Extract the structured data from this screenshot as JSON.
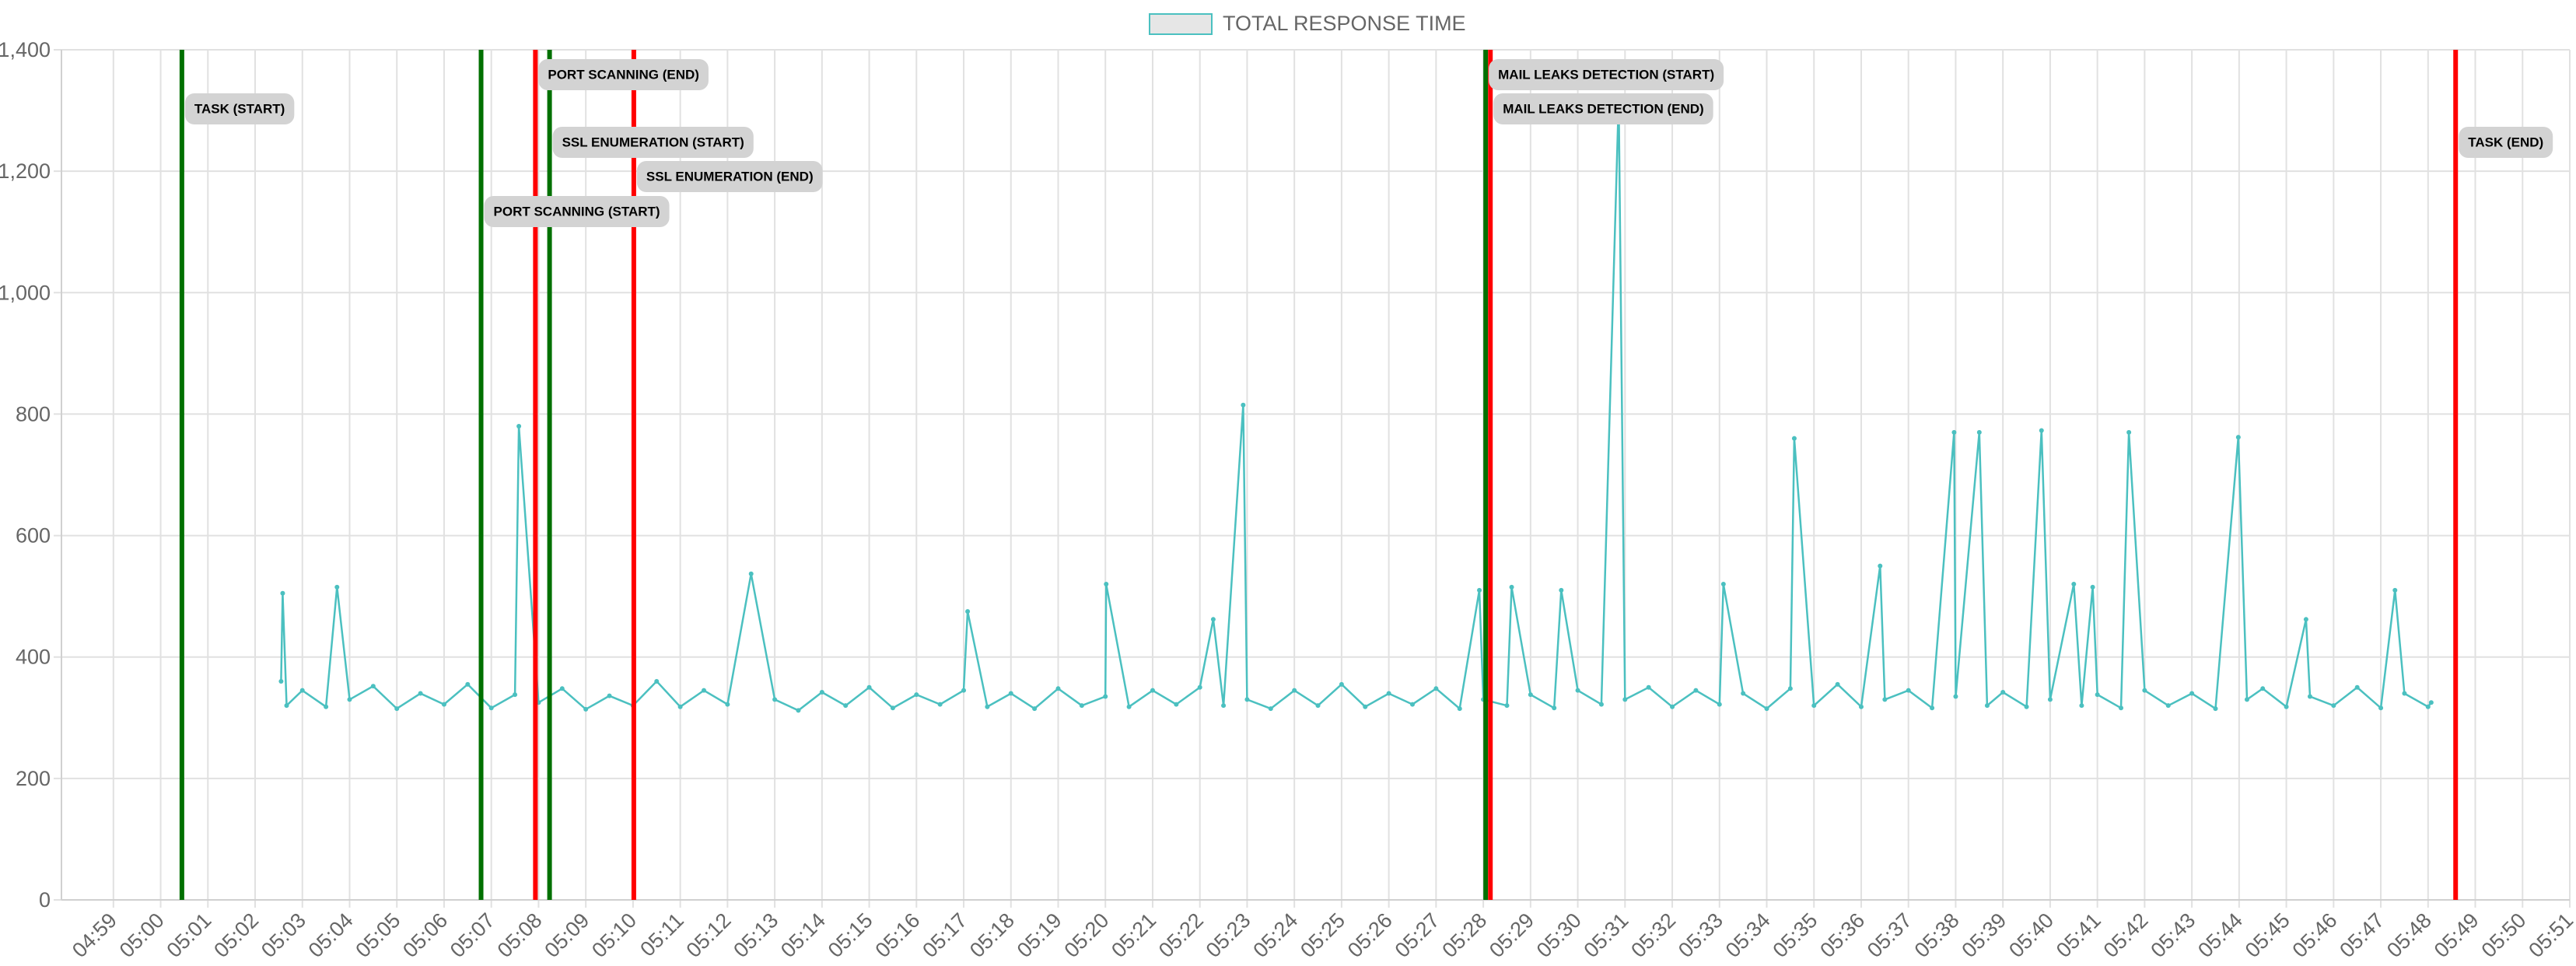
{
  "chart_data": {
    "type": "line",
    "x": [
      "05:02:33",
      "05:02:35",
      "05:02:40",
      "05:03:00",
      "05:03:30",
      "05:03:44",
      "05:04:00",
      "05:04:30",
      "05:05:00",
      "05:05:30",
      "05:06:00",
      "05:06:30",
      "05:07:00",
      "05:07:30",
      "05:07:35",
      "05:08:00",
      "05:08:30",
      "05:09:00",
      "05:09:30",
      "05:10:00",
      "05:10:30",
      "05:11:00",
      "05:11:30",
      "05:12:00",
      "05:12:30",
      "05:13:00",
      "05:13:30",
      "05:14:00",
      "05:14:30",
      "05:15:00",
      "05:15:30",
      "05:16:00",
      "05:16:30",
      "05:17:00",
      "05:17:05",
      "05:17:30",
      "05:18:00",
      "05:18:30",
      "05:19:00",
      "05:19:30",
      "05:20:00",
      "05:20:01",
      "05:20:30",
      "05:21:00",
      "05:21:30",
      "05:22:00",
      "05:22:17",
      "05:22:30",
      "05:22:55",
      "05:23:00",
      "05:23:30",
      "05:24:00",
      "05:24:30",
      "05:25:00",
      "05:25:30",
      "05:26:00",
      "05:26:30",
      "05:27:00",
      "05:27:30",
      "05:27:55",
      "05:28:00",
      "05:28:30",
      "05:28:36",
      "05:29:00",
      "05:29:30",
      "05:29:39",
      "05:30:00",
      "05:30:30",
      "05:30:52",
      "05:31:00",
      "05:31:30",
      "05:32:00",
      "05:32:30",
      "05:33:00",
      "05:33:05",
      "05:33:30",
      "05:34:00",
      "05:34:30",
      "05:34:35",
      "05:35:00",
      "05:35:30",
      "05:36:00",
      "05:36:24",
      "05:36:30",
      "05:37:00",
      "05:37:30",
      "05:37:58",
      "05:38:00",
      "05:38:30",
      "05:38:40",
      "05:39:00",
      "05:39:30",
      "05:39:49",
      "05:40:00",
      "05:40:30",
      "05:40:40",
      "05:40:54",
      "05:41:00",
      "05:41:30",
      "05:41:40",
      "05:42:00",
      "05:42:30",
      "05:43:00",
      "05:43:30",
      "05:43:59",
      "05:44:10",
      "05:44:30",
      "05:45:00",
      "05:45:25",
      "05:45:30",
      "05:46:00",
      "05:46:30",
      "05:47:00",
      "05:47:18",
      "05:47:30",
      "05:48:00",
      "05:48:04"
    ],
    "series": [
      {
        "name": "TOTAL RESPONSE TIME",
        "color": "#4bc0c0",
        "fill": "#e6e6e6",
        "values": [
          360,
          505,
          320,
          345,
          318,
          515,
          330,
          352,
          315,
          340,
          322,
          355,
          316,
          338,
          780,
          325,
          348,
          314,
          336,
          320,
          360,
          318,
          345,
          322,
          537,
          330,
          312,
          342,
          320,
          350,
          316,
          338,
          322,
          345,
          475,
          318,
          340,
          315,
          348,
          320,
          335,
          520,
          318,
          345,
          322,
          350,
          462,
          320,
          815,
          330,
          315,
          345,
          320,
          355,
          318,
          340,
          322,
          348,
          315,
          510,
          330,
          320,
          515,
          338,
          316,
          510,
          345,
          322,
          1320,
          330,
          350,
          318,
          345,
          322,
          520,
          340,
          315,
          348,
          760,
          320,
          355,
          318,
          550,
          330,
          345,
          316,
          770,
          335,
          770,
          320,
          342,
          318,
          773,
          330,
          520,
          320,
          515,
          338,
          316,
          770,
          345,
          320,
          340,
          315,
          762,
          330,
          348,
          318,
          462,
          335,
          320,
          350,
          316,
          510,
          340,
          318,
          325
        ]
      }
    ],
    "xlim": [
      "04:57:54",
      "05:51:00"
    ],
    "xticks": [
      "04:59",
      "05:00",
      "05:01",
      "05:02",
      "05:03",
      "05:04",
      "05:05",
      "05:06",
      "05:07",
      "05:08",
      "05:09",
      "05:10",
      "05:11",
      "05:12",
      "05:13",
      "05:14",
      "05:15",
      "05:16",
      "05:17",
      "05:18",
      "05:19",
      "05:20",
      "05:21",
      "05:22",
      "05:23",
      "05:24",
      "05:25",
      "05:26",
      "05:27",
      "05:28",
      "05:29",
      "05:30",
      "05:31",
      "05:32",
      "05:33",
      "05:34",
      "05:35",
      "05:36",
      "05:37",
      "05:38",
      "05:39",
      "05:40",
      "05:41",
      "05:42",
      "05:43",
      "05:44",
      "05:45",
      "05:46",
      "05:47",
      "05:48",
      "05:49",
      "05:50",
      "05:51"
    ],
    "ylim": [
      0,
      1400
    ],
    "yticks": [
      0,
      200,
      400,
      600,
      800,
      {
        "value": 1000,
        "label": "1,000"
      },
      {
        "value": 1200,
        "label": "1,200"
      },
      {
        "value": 1400,
        "label": "1,400"
      }
    ],
    "grid": true,
    "legend": "top",
    "annotations": [
      {
        "label": "TASK (START)",
        "x": "05:00:27",
        "color": "#007000"
      },
      {
        "label": "PORT SCANNING (START)",
        "x": "05:06:47",
        "color": "#007000"
      },
      {
        "label": "PORT SCANNING (END)",
        "x": "05:07:56",
        "color": "#ff0000"
      },
      {
        "label": "SSL ENUMERATION (START)",
        "x": "05:08:14",
        "color": "#007000"
      },
      {
        "label": "SSL ENUMERATION (END)",
        "x": "05:10:01",
        "color": "#ff0000"
      },
      {
        "label": "MAIL LEAKS DETECTION (START)",
        "x": "05:28:03",
        "color": "#007000"
      },
      {
        "label": "MAIL LEAKS DETECTION (END)",
        "x": "05:28:09",
        "color": "#ff0000"
      },
      {
        "label": "TASK (END)",
        "x": "05:48:35",
        "color": "#ff0000"
      }
    ]
  }
}
